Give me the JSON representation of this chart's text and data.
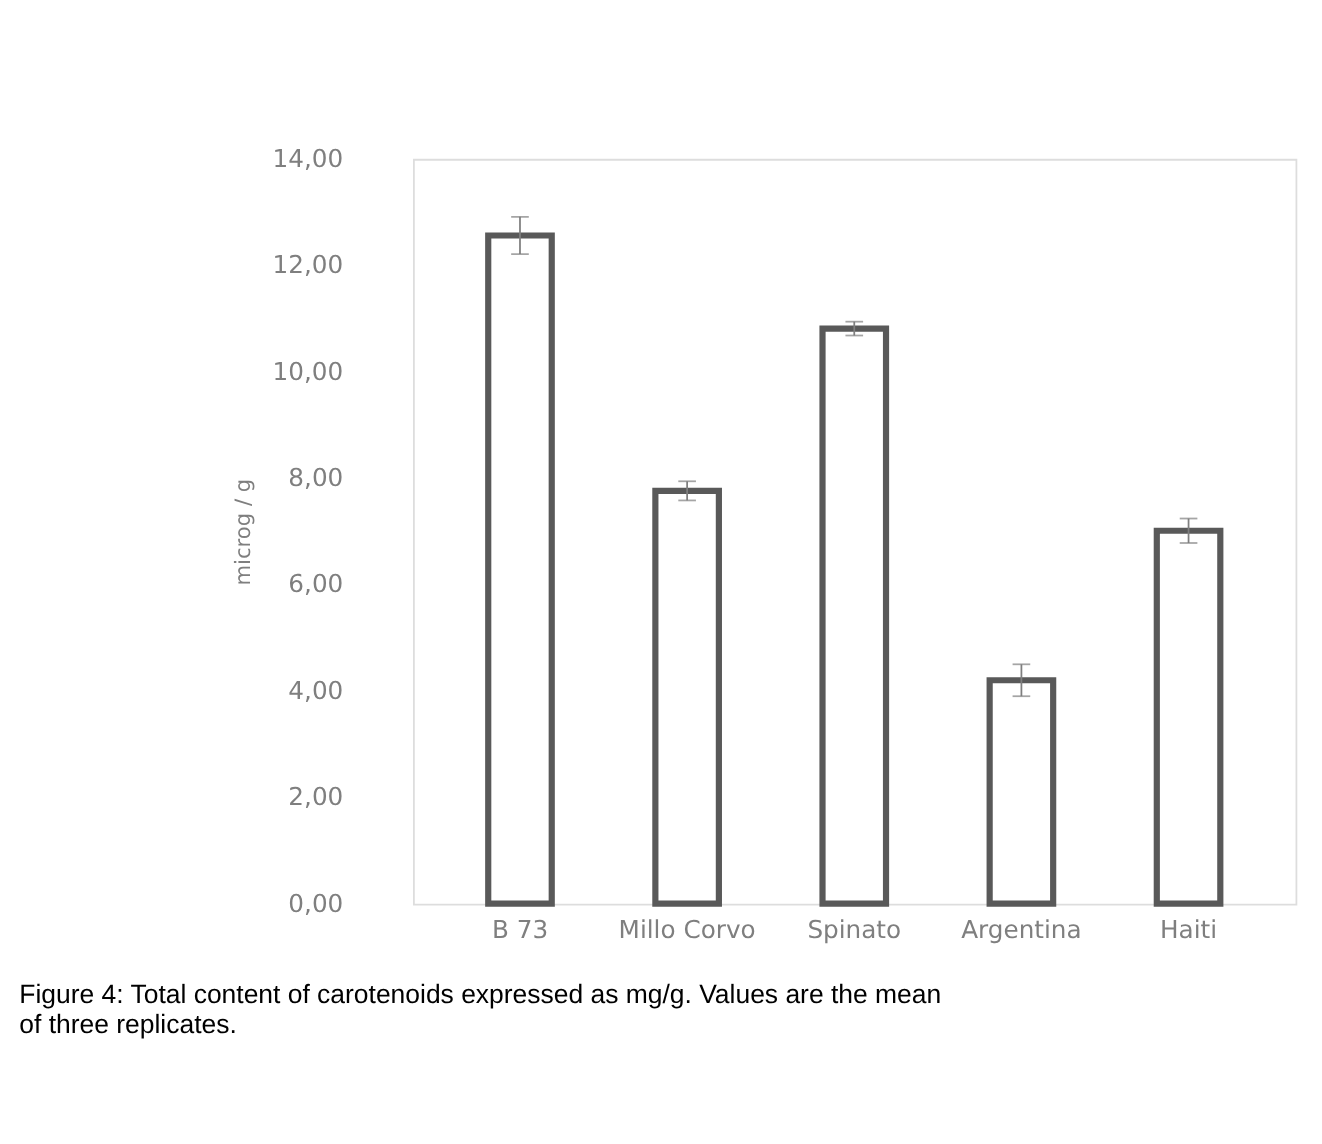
{
  "chart_data": {
    "type": "bar",
    "categories": [
      "B 73",
      "Millo Corvo",
      "Spinato",
      "Argentina",
      "Haiti"
    ],
    "values": [
      12.56,
      7.76,
      10.81,
      4.2,
      7.01
    ],
    "errors": [
      0.35,
      0.18,
      0.13,
      0.3,
      0.23
    ],
    "color": "#595959",
    "ylabel": "microg / g",
    "ylim": [
      0,
      14
    ],
    "yticks": [
      {
        "value": 0,
        "label": "0,00"
      },
      {
        "value": 2,
        "label": "2,00"
      },
      {
        "value": 4,
        "label": "4,00"
      },
      {
        "value": 6,
        "label": "6,00"
      },
      {
        "value": 8,
        "label": "8,00"
      },
      {
        "value": 10,
        "label": "10,00"
      },
      {
        "value": 12,
        "label": "12,00"
      },
      {
        "value": 14,
        "label": "14,00"
      }
    ],
    "grid": false,
    "annotations": [
      "Figure 4: Total content of carotenoids expressed as mg/g. Values are the mean of three replicates."
    ]
  }
}
